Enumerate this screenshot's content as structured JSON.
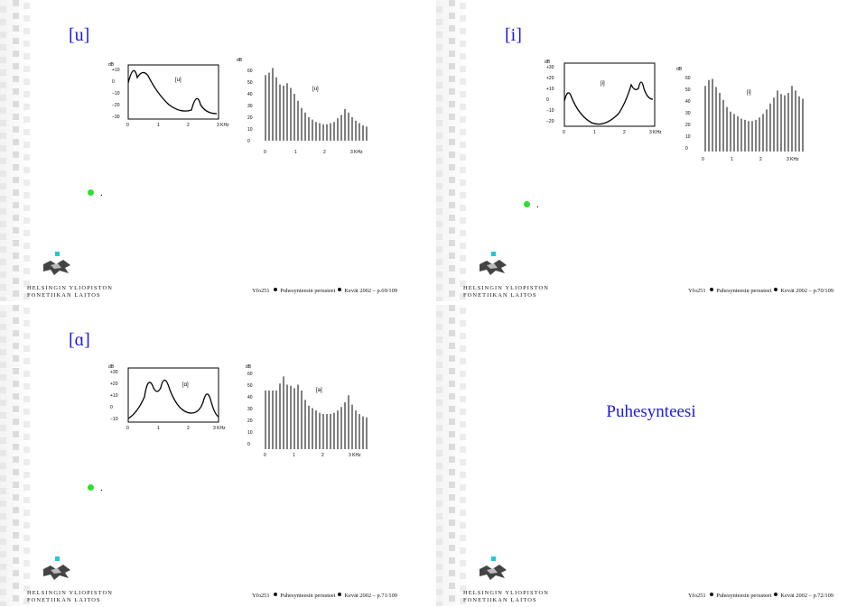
{
  "slides": [
    {
      "title": "[u]",
      "envelope": {
        "label": "[u]",
        "y_ticks": [
          "+10",
          "0",
          "−10",
          "−20",
          "−30"
        ],
        "x_ticks": [
          "0",
          "1",
          "2",
          "3 KHz"
        ],
        "unit": "dB"
      },
      "spectrum": {
        "label": "[u]",
        "y_ticks": [
          "60",
          "50",
          "40",
          "30",
          "20",
          "10",
          "0"
        ],
        "x_ticks": [
          "0",
          "1",
          "2",
          "3 KHz"
        ],
        "unit": "dB"
      },
      "bullet_text": ".",
      "footer": {
        "course": "Yfo251",
        "name": "Puhesynteesin perusteet",
        "term": "Kevät 2002",
        "page": "p.69/109"
      }
    },
    {
      "title": "[i]",
      "envelope": {
        "label": "[i]",
        "y_ticks": [
          "+30",
          "+20",
          "+10",
          "0",
          "−10",
          "−20"
        ],
        "x_ticks": [
          "0",
          "1",
          "2",
          "3 KHz"
        ],
        "unit": "dB"
      },
      "spectrum": {
        "label": "[i]",
        "y_ticks": [
          "60",
          "50",
          "40",
          "30",
          "20",
          "10",
          "0"
        ],
        "x_ticks": [
          "0",
          "1",
          "2",
          "3 KHz"
        ],
        "unit": "dB"
      },
      "bullet_text": ".",
      "footer": {
        "course": "Yfo251",
        "name": "Puhesynteesin perusteet",
        "term": "Kevät 2002",
        "page": "p.70/109"
      }
    },
    {
      "title": "[ɑ]",
      "envelope": {
        "label": "[ɑ]",
        "y_ticks": [
          "+30",
          "+20",
          "+10",
          "0",
          "−10"
        ],
        "x_ticks": [
          "0",
          "1",
          "2",
          "3 KHz"
        ],
        "unit": "dB"
      },
      "spectrum": {
        "label": "[a]",
        "y_ticks": [
          "60",
          "50",
          "40",
          "30",
          "20",
          "10",
          "0"
        ],
        "x_ticks": [
          "0",
          "1",
          "2",
          "3 KHz"
        ],
        "unit": "dB"
      },
      "bullet_text": ".",
      "footer": {
        "course": "Yfo251",
        "name": "Puhesynteesin perusteet",
        "term": "Kevät 2002",
        "page": "p.71/109"
      }
    },
    {
      "title": "Puhesynteesi",
      "footer": {
        "course": "Yfo251",
        "name": "Puhesynteesin perusteet",
        "term": "Kevät 2002",
        "page": "p.72/109"
      }
    }
  ],
  "institution": {
    "line1": "HELSINGIN YLIOPISTON",
    "line2": "FONETIIKAN LAITOS"
  },
  "colors": {
    "title": "#1a1adf",
    "bullet": "#2ee02e",
    "marker": "#22c7d6"
  }
}
